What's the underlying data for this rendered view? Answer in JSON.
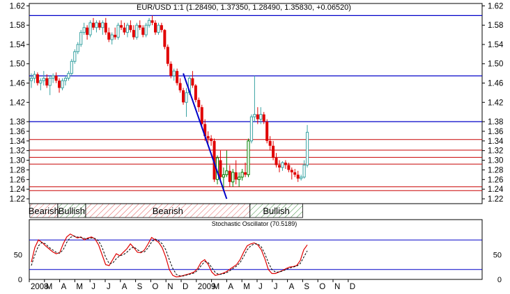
{
  "chart_data": [
    {
      "type": "candlestick",
      "title": "EUR/USD 1:1 (1.28490, 1.37350, 1.28490, 1.35830, +0.06520)",
      "ylim": [
        1.21,
        1.625
      ],
      "yticks": [
        1.62,
        1.58,
        1.54,
        1.5,
        1.46,
        1.42,
        1.38,
        1.36,
        1.34,
        1.32,
        1.3,
        1.28,
        1.26,
        1.24,
        1.22
      ],
      "grid": false,
      "colors": {
        "up": "#3aa3a3",
        "down": "#e00000",
        "highlight_up": "#008000",
        "blue_line": "#0000c8",
        "red_line": "#c80000"
      },
      "blue_horizontal_lines": [
        1.6,
        1.475,
        1.38
      ],
      "red_horizontal_lines": [
        1.343,
        1.321,
        1.306,
        1.292,
        1.245,
        1.237
      ],
      "trendline": {
        "from": [
          "2008-12-15",
          1.48
        ],
        "to": [
          "2009-03-23",
          1.22
        ]
      },
      "candles": [
        {
          "o": 1.465,
          "h": 1.48,
          "l": 1.45,
          "c": 1.47
        },
        {
          "o": 1.47,
          "h": 1.485,
          "l": 1.46,
          "c": 1.478
        },
        {
          "o": 1.478,
          "h": 1.482,
          "l": 1.455,
          "c": 1.46
        },
        {
          "o": 1.46,
          "h": 1.47,
          "l": 1.445,
          "c": 1.465
        },
        {
          "o": 1.465,
          "h": 1.485,
          "l": 1.455,
          "c": 1.47
        },
        {
          "o": 1.47,
          "h": 1.478,
          "l": 1.45,
          "c": 1.455
        },
        {
          "o": 1.455,
          "h": 1.475,
          "l": 1.435,
          "c": 1.47
        },
        {
          "o": 1.47,
          "h": 1.48,
          "l": 1.46,
          "c": 1.475
        },
        {
          "o": 1.475,
          "h": 1.482,
          "l": 1.46,
          "c": 1.465
        },
        {
          "o": 1.465,
          "h": 1.47,
          "l": 1.44,
          "c": 1.45
        },
        {
          "o": 1.45,
          "h": 1.47,
          "l": 1.445,
          "c": 1.465
        },
        {
          "o": 1.465,
          "h": 1.475,
          "l": 1.455,
          "c": 1.47
        },
        {
          "o": 1.47,
          "h": 1.485,
          "l": 1.465,
          "c": 1.48
        },
        {
          "o": 1.48,
          "h": 1.51,
          "l": 1.475,
          "c": 1.505
        },
        {
          "o": 1.505,
          "h": 1.53,
          "l": 1.5,
          "c": 1.525
        },
        {
          "o": 1.525,
          "h": 1.545,
          "l": 1.52,
          "c": 1.54
        },
        {
          "o": 1.54,
          "h": 1.57,
          "l": 1.535,
          "c": 1.565
        },
        {
          "o": 1.565,
          "h": 1.585,
          "l": 1.56,
          "c": 1.575
        },
        {
          "o": 1.575,
          "h": 1.58,
          "l": 1.55,
          "c": 1.56
        },
        {
          "o": 1.56,
          "h": 1.59,
          "l": 1.555,
          "c": 1.585
        },
        {
          "o": 1.585,
          "h": 1.595,
          "l": 1.57,
          "c": 1.575
        },
        {
          "o": 1.575,
          "h": 1.59,
          "l": 1.565,
          "c": 1.585
        },
        {
          "o": 1.585,
          "h": 1.59,
          "l": 1.57,
          "c": 1.575
        },
        {
          "o": 1.575,
          "h": 1.59,
          "l": 1.56,
          "c": 1.585
        },
        {
          "o": 1.585,
          "h": 1.595,
          "l": 1.56,
          "c": 1.565
        },
        {
          "o": 1.565,
          "h": 1.575,
          "l": 1.545,
          "c": 1.55
        },
        {
          "o": 1.55,
          "h": 1.565,
          "l": 1.54,
          "c": 1.56
        },
        {
          "o": 1.56,
          "h": 1.575,
          "l": 1.55,
          "c": 1.555
        },
        {
          "o": 1.555,
          "h": 1.585,
          "l": 1.55,
          "c": 1.58
        },
        {
          "o": 1.58,
          "h": 1.59,
          "l": 1.57,
          "c": 1.575
        },
        {
          "o": 1.575,
          "h": 1.585,
          "l": 1.56,
          "c": 1.565
        },
        {
          "o": 1.565,
          "h": 1.585,
          "l": 1.555,
          "c": 1.58
        },
        {
          "o": 1.58,
          "h": 1.59,
          "l": 1.565,
          "c": 1.57
        },
        {
          "o": 1.57,
          "h": 1.58,
          "l": 1.55,
          "c": 1.555
        },
        {
          "o": 1.555,
          "h": 1.585,
          "l": 1.55,
          "c": 1.58
        },
        {
          "o": 1.58,
          "h": 1.59,
          "l": 1.57,
          "c": 1.575
        },
        {
          "o": 1.575,
          "h": 1.58,
          "l": 1.555,
          "c": 1.56
        },
        {
          "o": 1.56,
          "h": 1.585,
          "l": 1.555,
          "c": 1.58
        },
        {
          "o": 1.58,
          "h": 1.595,
          "l": 1.575,
          "c": 1.59
        },
        {
          "o": 1.59,
          "h": 1.6,
          "l": 1.58,
          "c": 1.585
        },
        {
          "o": 1.585,
          "h": 1.59,
          "l": 1.56,
          "c": 1.565
        },
        {
          "o": 1.565,
          "h": 1.585,
          "l": 1.56,
          "c": 1.58
        },
        {
          "o": 1.58,
          "h": 1.585,
          "l": 1.565,
          "c": 1.57
        },
        {
          "o": 1.57,
          "h": 1.572,
          "l": 1.53,
          "c": 1.535
        },
        {
          "o": 1.535,
          "h": 1.54,
          "l": 1.495,
          "c": 1.5
        },
        {
          "o": 1.5,
          "h": 1.505,
          "l": 1.47,
          "c": 1.475
        },
        {
          "o": 1.475,
          "h": 1.49,
          "l": 1.465,
          "c": 1.485
        },
        {
          "o": 1.485,
          "h": 1.49,
          "l": 1.455,
          "c": 1.46
        },
        {
          "o": 1.46,
          "h": 1.47,
          "l": 1.44,
          "c": 1.445
        },
        {
          "o": 1.445,
          "h": 1.45,
          "l": 1.415,
          "c": 1.42
        },
        {
          "o": 1.42,
          "h": 1.45,
          "l": 1.39,
          "c": 1.44
        },
        {
          "o": 1.44,
          "h": 1.475,
          "l": 1.435,
          "c": 1.47
        },
        {
          "o": 1.47,
          "h": 1.485,
          "l": 1.45,
          "c": 1.455
        },
        {
          "o": 1.455,
          "h": 1.458,
          "l": 1.42,
          "c": 1.425
        },
        {
          "o": 1.425,
          "h": 1.43,
          "l": 1.4,
          "c": 1.41
        },
        {
          "o": 1.41,
          "h": 1.415,
          "l": 1.37,
          "c": 1.375
        },
        {
          "o": 1.375,
          "h": 1.385,
          "l": 1.34,
          "c": 1.35
        },
        {
          "o": 1.35,
          "h": 1.36,
          "l": 1.33,
          "c": 1.345
        },
        {
          "o": 1.345,
          "h": 1.352,
          "l": 1.33,
          "c": 1.34
        },
        {
          "o": 1.34,
          "h": 1.345,
          "l": 1.255,
          "c": 1.26
        },
        {
          "o": 1.26,
          "h": 1.31,
          "l": 1.25,
          "c": 1.305
        },
        {
          "o": 1.3,
          "h": 1.32,
          "l": 1.255,
          "c": 1.265
        },
        {
          "o": 1.265,
          "h": 1.285,
          "l": 1.235,
          "c": 1.27
        },
        {
          "o": 1.27,
          "h": 1.32,
          "l": 1.265,
          "c": 1.278
        },
        {
          "o": 1.278,
          "h": 1.29,
          "l": 1.245,
          "c": 1.255
        },
        {
          "o": 1.255,
          "h": 1.282,
          "l": 1.245,
          "c": 1.275
        },
        {
          "o": 1.275,
          "h": 1.3,
          "l": 1.25,
          "c": 1.26
        },
        {
          "o": 1.26,
          "h": 1.275,
          "l": 1.245,
          "c": 1.265
        },
        {
          "o": 1.265,
          "h": 1.282,
          "l": 1.258,
          "c": 1.275
        },
        {
          "o": 1.275,
          "h": 1.295,
          "l": 1.265,
          "c": 1.27
        },
        {
          "o": 1.27,
          "h": 1.345,
          "l": 1.265,
          "c": 1.34
        },
        {
          "o": 1.34,
          "h": 1.395,
          "l": 1.335,
          "c": 1.39
        },
        {
          "o": 1.39,
          "h": 1.475,
          "l": 1.38,
          "c": 1.395
        },
        {
          "o": 1.395,
          "h": 1.41,
          "l": 1.375,
          "c": 1.385
        },
        {
          "o": 1.385,
          "h": 1.41,
          "l": 1.375,
          "c": 1.395
        },
        {
          "o": 1.395,
          "h": 1.4,
          "l": 1.375,
          "c": 1.38
        },
        {
          "o": 1.38,
          "h": 1.385,
          "l": 1.335,
          "c": 1.34
        },
        {
          "o": 1.34,
          "h": 1.35,
          "l": 1.32,
          "c": 1.33
        },
        {
          "o": 1.33,
          "h": 1.34,
          "l": 1.3,
          "c": 1.305
        },
        {
          "o": 1.305,
          "h": 1.315,
          "l": 1.285,
          "c": 1.29
        },
        {
          "o": 1.29,
          "h": 1.3,
          "l": 1.275,
          "c": 1.285
        },
        {
          "o": 1.285,
          "h": 1.298,
          "l": 1.278,
          "c": 1.295
        },
        {
          "o": 1.295,
          "h": 1.3,
          "l": 1.282,
          "c": 1.29
        },
        {
          "o": 1.29,
          "h": 1.295,
          "l": 1.275,
          "c": 1.28
        },
        {
          "o": 1.28,
          "h": 1.285,
          "l": 1.26,
          "c": 1.275
        },
        {
          "o": 1.275,
          "h": 1.282,
          "l": 1.265,
          "c": 1.27
        },
        {
          "o": 1.27,
          "h": 1.278,
          "l": 1.255,
          "c": 1.262
        },
        {
          "o": 1.262,
          "h": 1.27,
          "l": 1.258,
          "c": 1.265
        },
        {
          "o": 1.265,
          "h": 1.3,
          "l": 1.262,
          "c": 1.29
        },
        {
          "o": 1.29,
          "h": 1.373,
          "l": 1.285,
          "c": 1.358
        }
      ],
      "highlight_up_range": [
        59,
        70
      ],
      "sentiment_bands": [
        {
          "label": "Bearish",
          "from": 0,
          "to": 8,
          "style": "red-hatch"
        },
        {
          "label": "Bullish",
          "from": 9,
          "to": 17,
          "style": "green-hatch"
        },
        {
          "label": "Bearish",
          "from": 18,
          "to": 70,
          "style": "red-hatch"
        },
        {
          "label": "Bullish",
          "from": 71,
          "to": 87,
          "style": "green-hatch"
        }
      ]
    },
    {
      "type": "line",
      "title": "Stochastic Oscillator (70.5189)",
      "ylim": [
        0,
        100
      ],
      "yticks": [
        0,
        50
      ],
      "levels": [
        80,
        20
      ],
      "series": [
        {
          "values": [
            35,
            65,
            80,
            75,
            68,
            62,
            56,
            52,
            54,
            72,
            86,
            92,
            88,
            84,
            86,
            80,
            84,
            86,
            82,
            70,
            50,
            30,
            28,
            40,
            52,
            48,
            55,
            62,
            72,
            64,
            55,
            54,
            60,
            72,
            85,
            80,
            75,
            64,
            45,
            20,
            8,
            5,
            6,
            8,
            10,
            12,
            15,
            22,
            35,
            40,
            30,
            15,
            8,
            10,
            12,
            15,
            20,
            25,
            30,
            40,
            55,
            68,
            72,
            74,
            70,
            60,
            42,
            20,
            12,
            12,
            15,
            18,
            22,
            25,
            26,
            28,
            38,
            60,
            70
          ]
        },
        {
          "values": [
            28,
            50,
            68,
            75,
            72,
            65,
            60,
            55,
            53,
            60,
            75,
            85,
            88,
            86,
            85,
            83,
            82,
            84,
            83,
            78,
            65,
            45,
            32,
            33,
            42,
            48,
            50,
            55,
            62,
            66,
            60,
            56,
            56,
            64,
            76,
            82,
            78,
            72,
            60,
            40,
            22,
            10,
            7,
            7,
            9,
            11,
            13,
            18,
            28,
            36,
            34,
            24,
            14,
            10,
            11,
            13,
            17,
            22,
            27,
            34,
            46,
            60,
            68,
            72,
            72,
            66,
            52,
            34,
            20,
            15,
            15,
            17,
            20,
            23,
            25,
            27,
            32,
            45,
            58
          ]
        }
      ]
    }
  ],
  "time_axis": {
    "labels": [
      "2008",
      "M",
      "A",
      "M",
      "J",
      "J",
      "A",
      "S",
      "O",
      "N",
      "D",
      "2009",
      "M",
      "A",
      "M",
      "J",
      "J",
      "A",
      "S",
      "O",
      "N",
      "D"
    ]
  }
}
